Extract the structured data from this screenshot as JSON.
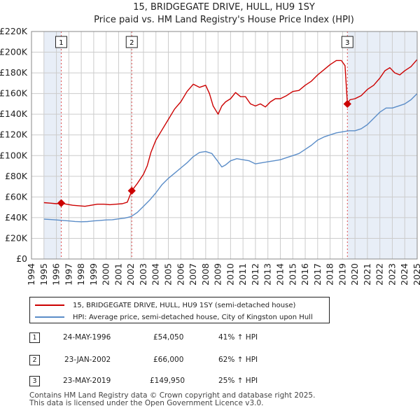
{
  "chart_data": {
    "type": "line",
    "title": "15, BRIDGEGATE DRIVE, HULL, HU9 1SY",
    "subtitle": "Price paid vs. HM Land Registry's House Price Index (HPI)",
    "x_range": [
      1994,
      2025
    ],
    "ylim": [
      0,
      220000
    ],
    "y_ticks": [
      0,
      20000,
      40000,
      60000,
      80000,
      100000,
      120000,
      140000,
      160000,
      180000,
      200000,
      220000
    ],
    "y_tick_labels": [
      "£0",
      "£20K",
      "£40K",
      "£60K",
      "£80K",
      "£100K",
      "£120K",
      "£140K",
      "£160K",
      "£180K",
      "£200K",
      "£220K"
    ],
    "x_ticks": [
      "1994",
      "1995",
      "1996",
      "1997",
      "1998",
      "1999",
      "2000",
      "2001",
      "2002",
      "2003",
      "2004",
      "2005",
      "2006",
      "2007",
      "2008",
      "2009",
      "2010",
      "2011",
      "2012",
      "2013",
      "2014",
      "2015",
      "2016",
      "2017",
      "2018",
      "2019",
      "2020",
      "2021",
      "2022",
      "2023",
      "2024",
      "2025"
    ],
    "grid": true,
    "colors": {
      "property": "#cc0000",
      "hpi": "#5b8dc8",
      "shade": "#e8eef7",
      "sale_line": "#e05050"
    },
    "series": [
      {
        "name": "15, BRIDGEGATE DRIVE, HULL, HU9 1SY (semi-detached house)",
        "x": [
          1995.0,
          1995.5,
          1996.0,
          1996.39,
          1996.8,
          1997.3,
          1997.8,
          1998.3,
          1998.8,
          1999.3,
          1999.8,
          2000.3,
          2000.8,
          2001.3,
          2001.7,
          2002.06,
          2002.5,
          2003.0,
          2003.3,
          2003.6,
          2004.0,
          2004.5,
          2005.0,
          2005.5,
          2006.0,
          2006.5,
          2007.0,
          2007.5,
          2008.0,
          2008.3,
          2008.6,
          2009.0,
          2009.3,
          2009.6,
          2010.0,
          2010.4,
          2010.8,
          2011.2,
          2011.6,
          2012.0,
          2012.4,
          2012.8,
          2013.2,
          2013.6,
          2014.0,
          2014.5,
          2015.0,
          2015.5,
          2016.0,
          2016.5,
          2017.0,
          2017.5,
          2018.0,
          2018.5,
          2018.9,
          2019.2,
          2019.39,
          2019.6,
          2020.0,
          2020.5,
          2021.0,
          2021.5,
          2022.0,
          2022.4,
          2022.8,
          2023.2,
          2023.6,
          2024.0,
          2024.5,
          2025.0
        ],
        "values": [
          54500,
          54000,
          53500,
          54050,
          53000,
          52000,
          51500,
          51000,
          52000,
          53000,
          53000,
          52500,
          53000,
          53500,
          55000,
          66000,
          73000,
          82000,
          90000,
          103000,
          115000,
          125000,
          135000,
          145000,
          152000,
          162000,
          169000,
          166000,
          168000,
          160000,
          148000,
          140000,
          148000,
          152000,
          155000,
          161000,
          157000,
          157000,
          150000,
          148000,
          150000,
          147000,
          152000,
          155000,
          155000,
          158000,
          162000,
          163000,
          168000,
          172000,
          178000,
          183000,
          188000,
          192000,
          192000,
          187000,
          149950,
          154000,
          155000,
          158000,
          164000,
          168000,
          175000,
          182000,
          185000,
          180000,
          178000,
          182000,
          186000,
          193000
        ]
      },
      {
        "name": "HPI: Average price, semi-detached house, City of Kingston upon Hull",
        "x": [
          1995.0,
          1995.5,
          1996.0,
          1996.5,
          1997.0,
          1997.5,
          1998.0,
          1998.5,
          1999.0,
          1999.5,
          2000.0,
          2000.5,
          2001.0,
          2001.5,
          2002.0,
          2002.5,
          2003.0,
          2003.5,
          2004.0,
          2004.5,
          2005.0,
          2005.5,
          2006.0,
          2006.5,
          2007.0,
          2007.5,
          2008.0,
          2008.5,
          2009.0,
          2009.3,
          2009.6,
          2010.0,
          2010.5,
          2011.0,
          2011.5,
          2012.0,
          2012.5,
          2013.0,
          2013.5,
          2014.0,
          2014.5,
          2015.0,
          2015.5,
          2016.0,
          2016.5,
          2017.0,
          2017.5,
          2018.0,
          2018.5,
          2019.0,
          2019.5,
          2020.0,
          2020.5,
          2021.0,
          2021.5,
          2022.0,
          2022.5,
          2023.0,
          2023.5,
          2024.0,
          2024.5,
          2025.0
        ],
        "values": [
          38500,
          38200,
          37800,
          37300,
          36800,
          36300,
          36000,
          36200,
          36800,
          37300,
          37800,
          38000,
          38800,
          39500,
          41000,
          45000,
          51000,
          57000,
          64000,
          72000,
          78000,
          83000,
          88000,
          93000,
          99000,
          103000,
          104000,
          102000,
          94000,
          89000,
          91000,
          95000,
          97000,
          96000,
          95000,
          92000,
          93000,
          94000,
          95000,
          96000,
          98000,
          100000,
          102000,
          106000,
          110000,
          115000,
          118000,
          120000,
          122000,
          123000,
          124000,
          124000,
          126000,
          130000,
          136000,
          142000,
          146000,
          146000,
          148000,
          150000,
          154000,
          160000
        ]
      }
    ],
    "sales": [
      {
        "num": "1",
        "x": 1996.39,
        "value": 54050
      },
      {
        "num": "2",
        "x": 2002.06,
        "value": 66000
      },
      {
        "num": "3",
        "x": 2019.39,
        "value": 149950
      }
    ]
  },
  "legend": {
    "property_label": "15, BRIDGEGATE DRIVE, HULL, HU9 1SY (semi-detached house)",
    "hpi_label": "HPI: Average price, semi-detached house, City of Kingston upon Hull"
  },
  "sales_table": [
    {
      "num": "1",
      "date": "24-MAY-1996",
      "price": "£54,050",
      "hpi": "41% ↑ HPI"
    },
    {
      "num": "2",
      "date": "23-JAN-2002",
      "price": "£66,000",
      "hpi": "62% ↑ HPI"
    },
    {
      "num": "3",
      "date": "23-MAY-2019",
      "price": "£149,950",
      "hpi": "25% ↑ HPI"
    }
  ],
  "footer": {
    "line1": "Contains HM Land Registry data © Crown copyright and database right 2025.",
    "line2": "This data is licensed under the Open Government Licence v3.0."
  }
}
